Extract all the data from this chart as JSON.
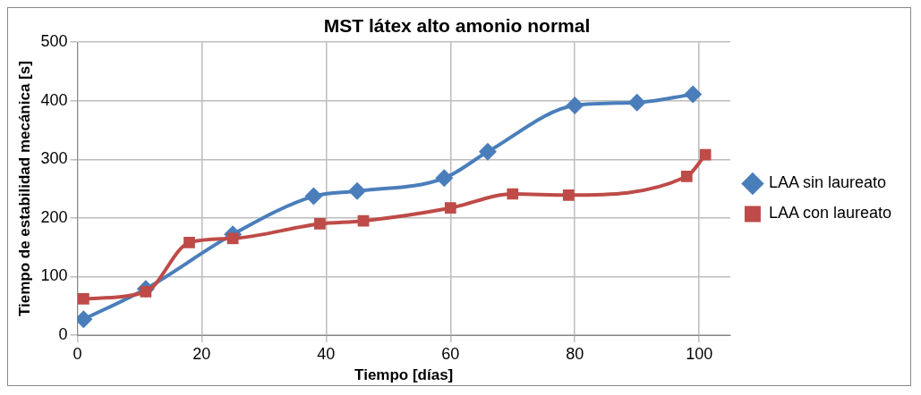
{
  "chart_data": {
    "type": "line",
    "title": "MST látex alto amonio normal",
    "xlabel": "Tiempo [días]",
    "ylabel": "Tiempo de estabilidad mecánica [s]",
    "xlim": [
      0,
      105
    ],
    "xticks": [
      0,
      20,
      40,
      60,
      80,
      100
    ],
    "ylim": [
      0,
      500
    ],
    "yticks": [
      0,
      100,
      200,
      300,
      400,
      500
    ],
    "grid": true,
    "legend": "right",
    "series": [
      {
        "name": "LAA sin laureato",
        "color": "#4a7ebb",
        "marker": "diamond",
        "x": [
          1,
          11,
          25,
          38,
          45,
          59,
          66,
          80,
          90,
          99
        ],
        "values": [
          27,
          79,
          172,
          237,
          246,
          268,
          313,
          392,
          397,
          411
        ]
      },
      {
        "name": "LAA con laureato",
        "color": "#be4b48",
        "marker": "square",
        "x": [
          1,
          11,
          18,
          25,
          39,
          46,
          60,
          70,
          79,
          98,
          101
        ],
        "values": [
          62,
          74,
          158,
          165,
          190,
          195,
          217,
          241,
          239,
          271,
          308
        ]
      }
    ]
  }
}
